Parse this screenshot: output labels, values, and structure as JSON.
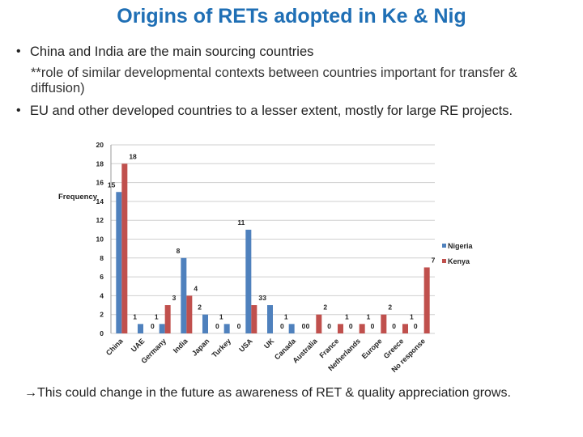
{
  "title": "Origins of RETs adopted in Ke & Nig",
  "bullets": {
    "b1": "China and India are the main sourcing countries",
    "b1_sub": "**role of similar developmental contexts between countries important for transfer & diffusion)",
    "b2": "EU and other developed countries to a lesser extent, mostly for large RE projects.",
    "marker": "•"
  },
  "footer": "→This could change in the future as awareness of RET & quality appreciation grows.",
  "chart_data": {
    "type": "bar",
    "ylabel": "Frequency",
    "ylim": [
      0,
      20
    ],
    "yticks": [
      0,
      2,
      4,
      6,
      8,
      10,
      12,
      14,
      16,
      18,
      20
    ],
    "categories": [
      "China",
      "UAE",
      "Germany",
      "India",
      "Japan",
      "Turkey",
      "USA",
      "UK",
      "Canada",
      "Australia",
      "France",
      "Netherlands",
      "Europe",
      "Greece",
      "No response"
    ],
    "series": [
      {
        "name": "Nigeria",
        "color": "#4f81bd",
        "values": [
          15,
          1,
          1,
          8,
          2,
          1,
          11,
          3,
          1,
          0,
          0,
          0,
          0,
          0,
          0
        ]
      },
      {
        "name": "Kenya",
        "color": "#c0504d",
        "values": [
          18,
          0,
          3,
          4,
          0,
          0,
          3,
          0,
          0,
          2,
          1,
          1,
          2,
          1,
          7
        ]
      }
    ],
    "legend": "right",
    "grid": true
  }
}
